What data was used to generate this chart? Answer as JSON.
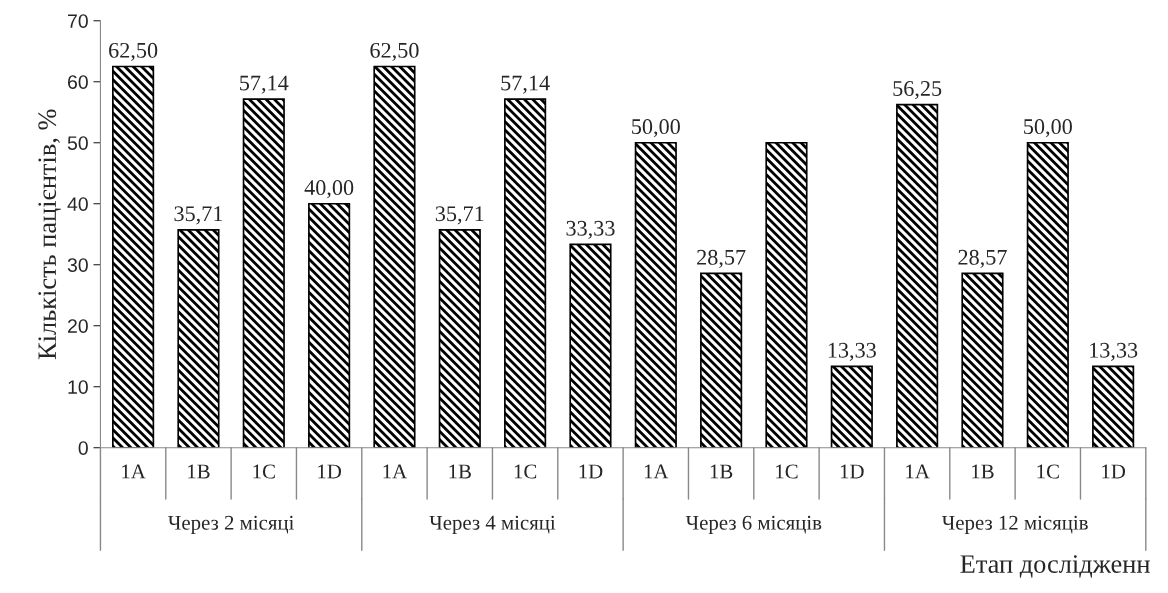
{
  "chart_data": {
    "type": "bar",
    "ylabel": "Кількість пацієнтів, %",
    "xlabel": "Етап дослідженн",
    "categories": [
      "1A",
      "1B",
      "1C",
      "1D",
      "1A",
      "1B",
      "1C",
      "1D",
      "1A",
      "1B",
      "1C",
      "1D",
      "1A",
      "1B",
      "1C",
      "1D"
    ],
    "values": [
      62.5,
      35.71,
      57.14,
      40.0,
      62.5,
      35.71,
      57.14,
      33.33,
      50.0,
      28.57,
      50.0,
      13.33,
      56.25,
      28.57,
      50.0,
      13.33
    ],
    "value_labels": [
      "62,50",
      "35,71",
      "57,14",
      "40,00",
      "62,50",
      "35,71",
      "57,14",
      "33,33",
      "50,00",
      "28,57",
      null,
      "13,33",
      "56,25",
      "28,57",
      "50,00",
      "13,33"
    ],
    "annotations": [
      "Через 2 місяці",
      "Через 4 місяці",
      "Через 6 місяців",
      "Через 12 місяців"
    ],
    "color": "#000000",
    "ylim": [
      0,
      70
    ],
    "yticks": [
      0,
      10,
      20,
      30,
      40,
      50,
      60,
      70
    ],
    "grid": false
  }
}
